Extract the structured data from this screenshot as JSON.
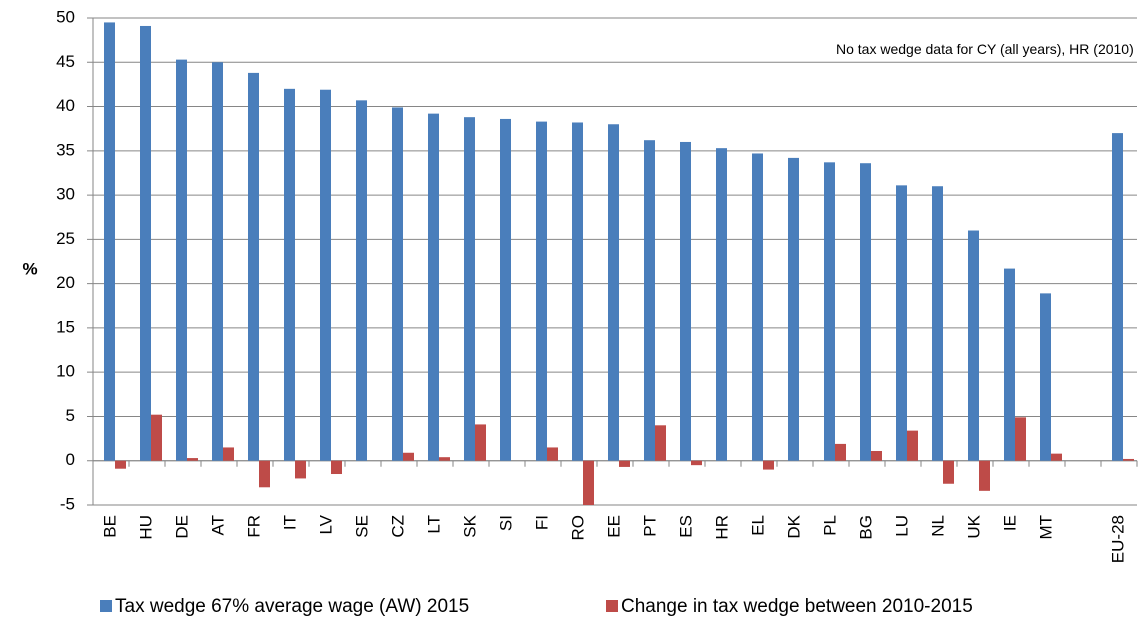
{
  "chart_data": {
    "type": "bar",
    "categories": [
      "BE",
      "HU",
      "DE",
      "AT",
      "FR",
      "IT",
      "LV",
      "SE",
      "CZ",
      "LT",
      "SK",
      "SI",
      "FI",
      "RO",
      "EE",
      "PT",
      "ES",
      "HR",
      "EL",
      "DK",
      "PL",
      "BG",
      "LU",
      "NL",
      "UK",
      "IE",
      "MT",
      null,
      "EU-28"
    ],
    "series": [
      {
        "name": "Tax wedge 67% average wage (AW) 2015",
        "color": "#4a7ebb",
        "values": [
          49.5,
          49.1,
          45.3,
          45.0,
          43.8,
          42.0,
          41.9,
          40.7,
          39.9,
          39.2,
          38.8,
          38.6,
          38.3,
          38.2,
          38.0,
          36.2,
          36.0,
          35.3,
          34.7,
          34.2,
          33.7,
          33.6,
          31.1,
          31.0,
          26.0,
          21.7,
          18.9,
          null,
          37.0
        ]
      },
      {
        "name": "Change in tax wedge between 2010-2015",
        "color": "#be4b48",
        "values": [
          -0.9,
          5.2,
          0.3,
          1.5,
          -3.0,
          -2.0,
          -1.5,
          0,
          0.9,
          0.4,
          4.1,
          0,
          1.5,
          -5,
          -0.7,
          4.0,
          -0.5,
          null,
          -1.0,
          0,
          1.9,
          1.1,
          3.4,
          -2.6,
          -3.4,
          4.9,
          0.8,
          null,
          0.2
        ]
      }
    ],
    "ylabel": "%",
    "ylim": [
      -5,
      50
    ],
    "yticks": [
      -5,
      0,
      5,
      10,
      15,
      20,
      25,
      30,
      35,
      40,
      45,
      50
    ],
    "grid": true,
    "annotation": "No tax wedge data for CY (all years), HR (2010)"
  }
}
